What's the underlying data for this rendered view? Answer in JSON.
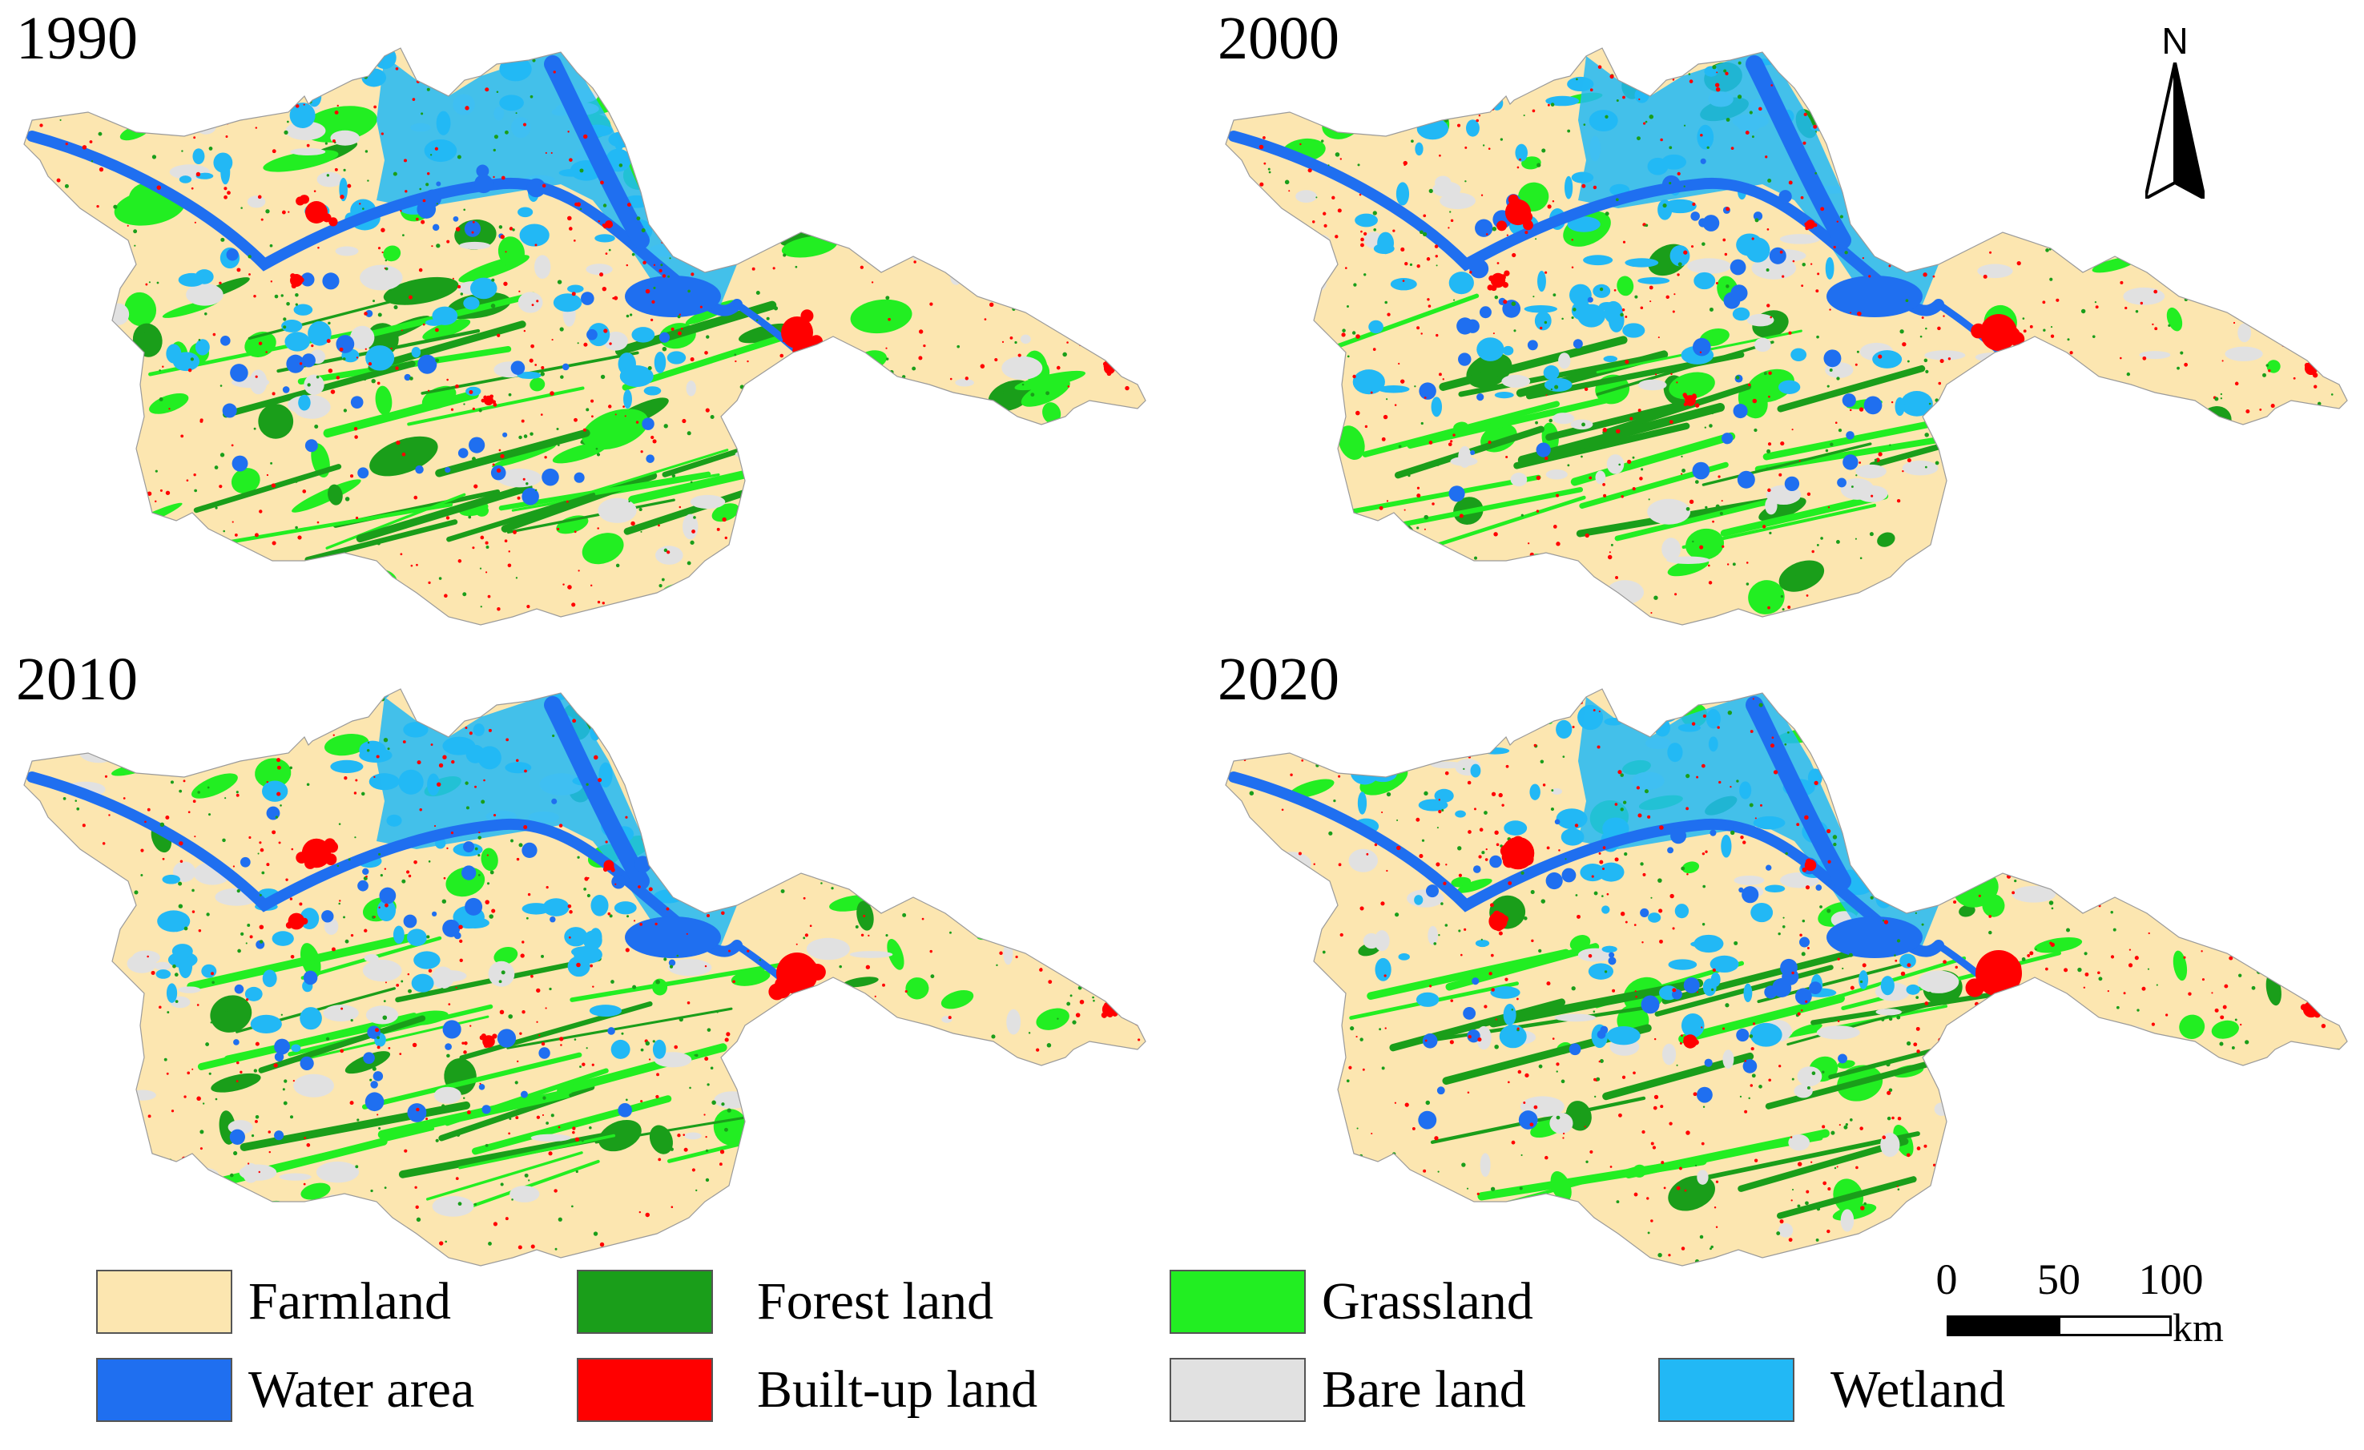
{
  "panels": [
    {
      "year": "1990"
    },
    {
      "year": "2000"
    },
    {
      "year": "2010"
    },
    {
      "year": "2020"
    }
  ],
  "north_arrow": {
    "label": "N"
  },
  "legend": [
    {
      "label": "Farmland",
      "color": "#fce6b0"
    },
    {
      "label": "Forest land",
      "color": "#1a9e1a"
    },
    {
      "label": "Grassland",
      "color": "#22ee22"
    },
    {
      "label": "Water area",
      "color": "#1f6ff0"
    },
    {
      "label": "Built-up land",
      "color": "#ff0000"
    },
    {
      "label": "Bare land",
      "color": "#e1e1e1"
    },
    {
      "label": "Wetland",
      "color": "#22b8f5"
    }
  ],
  "scale_bar": {
    "ticks": [
      "0",
      "50",
      "100"
    ],
    "unit": "km"
  }
}
